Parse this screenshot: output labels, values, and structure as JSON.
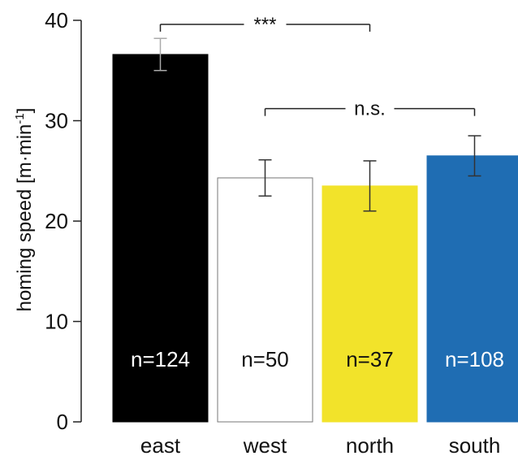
{
  "chart_data": {
    "type": "bar",
    "categories": [
      "east",
      "west",
      "north",
      "south"
    ],
    "values": [
      36.6,
      24.3,
      23.5,
      26.5
    ],
    "errors": [
      1.6,
      1.8,
      2.5,
      2.0
    ],
    "n_labels": [
      "n=124",
      "n=50",
      "n=37",
      "n=108"
    ],
    "colors": [
      "#000000",
      "#ffffff",
      "#f2e32a",
      "#1f6db3"
    ],
    "n_label_colors": [
      "#ffffff",
      "#111111",
      "#111111",
      "#ffffff"
    ],
    "ylabel_main": "homing speed [m",
    "ylabel_unit_dot": "·",
    "ylabel_unit_min": "min",
    "ylabel_superscript": "-1",
    "ylabel_close": "]",
    "ylim": [
      0,
      40
    ],
    "yticks": [
      "0",
      "10",
      "20",
      "30",
      "40"
    ],
    "yticks_values": [
      0,
      10,
      20,
      30,
      40
    ],
    "significance": [
      {
        "from": 0,
        "to": 2,
        "label": "***",
        "y": 39.6
      },
      {
        "from": 1,
        "to": 3,
        "label": "n.s.",
        "y": 31.2
      }
    ]
  }
}
